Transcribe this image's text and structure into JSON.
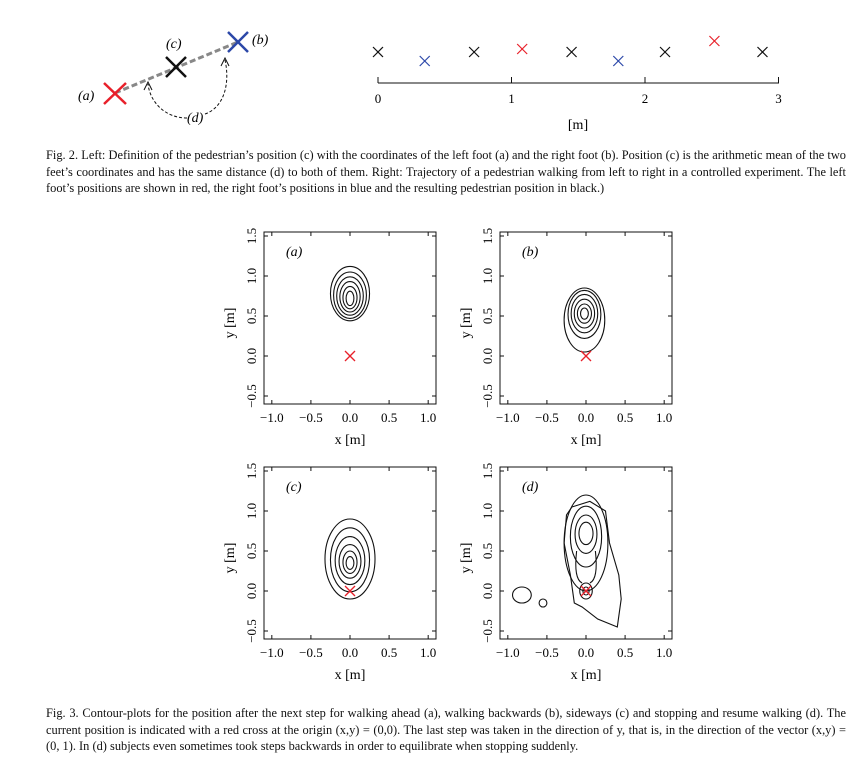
{
  "fig2": {
    "left": {
      "label_a": "(a)",
      "label_b": "(b)",
      "label_c": "(c)",
      "label_d": "(d)",
      "colors": {
        "left_foot": "#e8202a",
        "right_foot": "#2b47a8",
        "position": "#111111",
        "link": "#888888"
      }
    },
    "right": {
      "ticks": [
        "0",
        "1",
        "2",
        "3"
      ],
      "unit": "[m]",
      "trajectory": [
        {
          "foot": "position",
          "x": 0.0
        },
        {
          "foot": "right",
          "x": 0.35
        },
        {
          "foot": "position",
          "x": 0.72
        },
        {
          "foot": "left",
          "x": 1.08
        },
        {
          "foot": "position",
          "x": 1.45
        },
        {
          "foot": "right",
          "x": 1.8
        },
        {
          "foot": "position",
          "x": 2.15
        },
        {
          "foot": "left",
          "x": 2.52
        },
        {
          "foot": "position",
          "x": 2.88
        }
      ]
    },
    "caption": "Fig. 2. Left: Definition of the pedestrian’s position (c) with the coordinates of the left foot (a) and the right foot (b). Position (c) is the arithmetic mean of the two feet’s coordinates and has the same distance (d) to both of them. Right: Trajectory of a pedestrian walking from left to right in a controlled experiment. The left foot’s positions are shown in red, the right foot’s positions in blue and the resulting pedestrian position in black.)"
  },
  "fig3": {
    "xlabel": "x [m]",
    "ylabel": "y [m]",
    "xticks": [
      "−1.0",
      "−0.5",
      "0.0",
      "0.5",
      "1.0"
    ],
    "yticks": [
      "−0.5",
      "0.0",
      "0.5",
      "1.0",
      "1.5"
    ],
    "xlim": [
      -1.1,
      1.1
    ],
    "ylim": [
      -0.6,
      1.55
    ],
    "origin_marker_color": "#e8202a",
    "panels": [
      {
        "label": "(a)"
      },
      {
        "label": "(b)"
      },
      {
        "label": "(c)"
      },
      {
        "label": "(d)"
      }
    ],
    "caption": "Fig. 3. Contour-plots for the position after the next step for walking ahead (a), walking backwards (b), sideways (c) and stopping and resume walking (d). The current position is indicated with a red cross at the origin (x,y) = (0,0). The last step was taken in the direction of y, that is, in the direction of the vector (x,y) = (0, 1). In (d) subjects even sometimes took steps backwards in order to equilibrate when stopping suddenly."
  }
}
